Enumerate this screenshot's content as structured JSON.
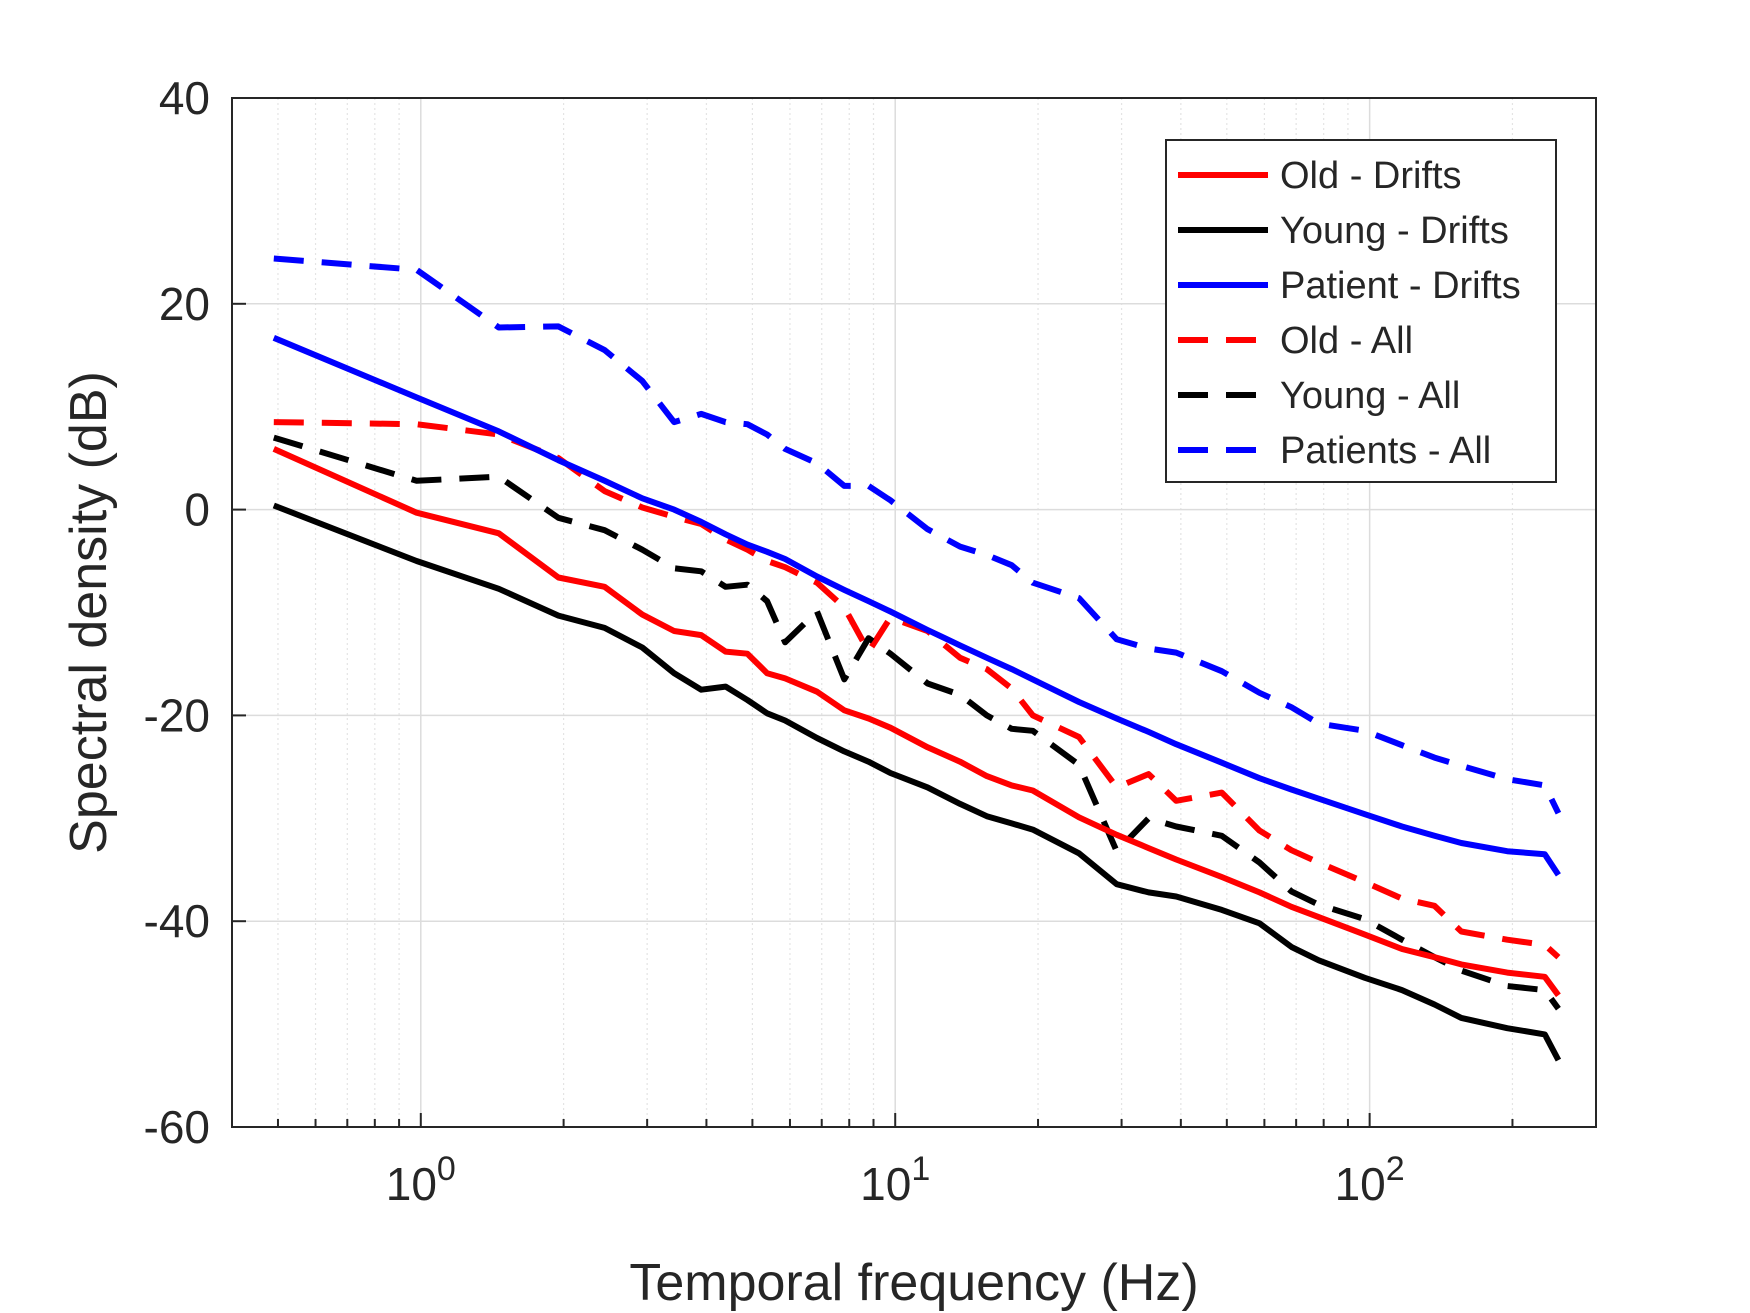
{
  "chart_data": {
    "type": "line",
    "title": "",
    "xlabel": "Temporal frequency (Hz)",
    "ylabel": "Spectral density (dB)",
    "xscale": "log",
    "xlim": [
      0.4,
      300
    ],
    "ylim": [
      -60,
      40
    ],
    "grid": true,
    "legend_position": "top-right",
    "x_ticks": [
      {
        "value": 1,
        "base": "10",
        "exp": "0"
      },
      {
        "value": 10,
        "base": "10",
        "exp": "1"
      },
      {
        "value": 100,
        "base": "10",
        "exp": "2"
      }
    ],
    "y_ticks": [
      {
        "value": 40,
        "label": "40"
      },
      {
        "value": 20,
        "label": "20"
      },
      {
        "value": 0,
        "label": "0"
      },
      {
        "value": -20,
        "label": "-20"
      },
      {
        "value": -40,
        "label": "-40"
      },
      {
        "value": -60,
        "label": "-60"
      }
    ],
    "series": [
      {
        "name": "Old - Drifts",
        "color": "#ff0000",
        "dash": "solid",
        "x": [
          0.49,
          0.98,
          1.46,
          1.95,
          2.44,
          2.93,
          3.42,
          3.9,
          4.39,
          4.88,
          5.37,
          5.86,
          6.84,
          7.81,
          8.79,
          9.77,
          11.7,
          13.7,
          15.6,
          17.6,
          19.5,
          24.4,
          29.3,
          34.2,
          39.1,
          48.8,
          58.6,
          68.4,
          78.1,
          97.7,
          117,
          137,
          156,
          195,
          234,
          250
        ],
        "y": [
          5.9,
          -0.3,
          -2.3,
          -6.6,
          -7.5,
          -10.2,
          -11.8,
          -12.2,
          -13.8,
          -14.0,
          -15.9,
          -16.4,
          -17.7,
          -19.5,
          -20.3,
          -21.2,
          -23.1,
          -24.5,
          -25.9,
          -26.8,
          -27.3,
          -29.9,
          -31.6,
          -32.9,
          -34.0,
          -35.7,
          -37.2,
          -38.6,
          -39.6,
          -41.3,
          -42.7,
          -43.5,
          -44.2,
          -45.0,
          -45.4,
          -47.2
        ]
      },
      {
        "name": "Young - Drifts",
        "color": "#000000",
        "dash": "solid",
        "x": [
          0.49,
          0.98,
          1.46,
          1.95,
          2.44,
          2.93,
          3.42,
          3.9,
          4.39,
          4.88,
          5.37,
          5.86,
          6.84,
          7.81,
          8.79,
          9.77,
          11.7,
          13.7,
          15.6,
          17.6,
          19.5,
          24.4,
          29.3,
          34.2,
          39.1,
          48.8,
          58.6,
          68.4,
          78.1,
          97.7,
          117,
          137,
          156,
          195,
          234,
          250
        ],
        "y": [
          0.4,
          -5.0,
          -7.7,
          -10.3,
          -11.5,
          -13.4,
          -15.9,
          -17.5,
          -17.2,
          -18.5,
          -19.8,
          -20.5,
          -22.2,
          -23.5,
          -24.5,
          -25.6,
          -27.0,
          -28.6,
          -29.8,
          -30.5,
          -31.1,
          -33.4,
          -36.4,
          -37.2,
          -37.6,
          -38.9,
          -40.2,
          -42.5,
          -43.8,
          -45.5,
          -46.7,
          -48.1,
          -49.4,
          -50.4,
          -51.0,
          -53.5
        ]
      },
      {
        "name": "Patient - Drifts",
        "color": "#0000ff",
        "dash": "solid",
        "x": [
          0.49,
          0.98,
          1.46,
          1.95,
          2.44,
          2.93,
          3.42,
          3.9,
          4.39,
          4.88,
          5.37,
          5.86,
          6.84,
          7.81,
          8.79,
          9.77,
          11.7,
          13.7,
          15.6,
          17.6,
          19.5,
          24.4,
          29.3,
          34.2,
          39.1,
          48.8,
          58.6,
          68.4,
          78.1,
          97.7,
          117,
          137,
          156,
          195,
          234,
          250
        ],
        "y": [
          16.7,
          10.9,
          7.6,
          4.8,
          2.8,
          1.1,
          0.0,
          -1.2,
          -2.4,
          -3.4,
          -4.1,
          -4.8,
          -6.5,
          -7.8,
          -8.9,
          -9.9,
          -11.7,
          -13.2,
          -14.4,
          -15.5,
          -16.5,
          -18.7,
          -20.3,
          -21.6,
          -22.8,
          -24.6,
          -26.1,
          -27.2,
          -28.1,
          -29.6,
          -30.8,
          -31.7,
          -32.4,
          -33.2,
          -33.5,
          -35.5
        ]
      },
      {
        "name": "Old - All",
        "color": "#ff0000",
        "dash": "dashed",
        "x": [
          0.49,
          0.98,
          1.46,
          1.95,
          2.44,
          2.93,
          3.42,
          3.9,
          4.39,
          4.88,
          5.37,
          5.86,
          6.84,
          7.81,
          8.79,
          9.77,
          11.7,
          13.7,
          15.6,
          17.6,
          19.5,
          24.4,
          29.3,
          34.2,
          39.1,
          48.8,
          58.6,
          68.4,
          78.1,
          97.7,
          117,
          137,
          156,
          195,
          234,
          250
        ],
        "y": [
          8.5,
          8.3,
          7.3,
          5.0,
          1.8,
          0.2,
          -0.7,
          -1.4,
          -2.9,
          -3.9,
          -5.0,
          -5.6,
          -7.1,
          -9.5,
          -13.8,
          -10.5,
          -11.8,
          -14.4,
          -15.5,
          -17.4,
          -20.0,
          -22.1,
          -27.0,
          -25.7,
          -28.3,
          -27.5,
          -31.2,
          -33.1,
          -34.3,
          -36.2,
          -37.8,
          -38.5,
          -41.0,
          -41.8,
          -42.3,
          -43.5
        ]
      },
      {
        "name": "Young - All",
        "color": "#000000",
        "dash": "dashed",
        "x": [
          0.49,
          0.98,
          1.46,
          1.95,
          2.44,
          2.93,
          3.42,
          3.9,
          4.39,
          4.88,
          5.37,
          5.86,
          6.84,
          7.81,
          8.79,
          9.77,
          11.7,
          13.7,
          15.6,
          17.6,
          19.5,
          24.4,
          29.3,
          34.2,
          39.1,
          48.8,
          58.6,
          68.4,
          78.1,
          97.7,
          117,
          137,
          156,
          195,
          234,
          250
        ],
        "y": [
          7.0,
          2.8,
          3.2,
          -0.8,
          -2.0,
          -3.9,
          -5.7,
          -6.0,
          -7.5,
          -7.3,
          -8.9,
          -12.9,
          -9.9,
          -16.5,
          -12.5,
          -14.0,
          -16.9,
          -18.0,
          -20.0,
          -21.3,
          -21.5,
          -24.8,
          -33.2,
          -30.0,
          -30.8,
          -31.7,
          -34.3,
          -37.1,
          -38.4,
          -39.8,
          -41.8,
          -43.5,
          -44.8,
          -46.3,
          -46.7,
          -48.5
        ]
      },
      {
        "name": "Patients - All",
        "color": "#0000ff",
        "dash": "dashed",
        "x": [
          0.49,
          0.98,
          1.46,
          1.95,
          2.44,
          2.93,
          3.42,
          3.9,
          4.39,
          4.88,
          5.37,
          5.86,
          6.84,
          7.81,
          8.79,
          9.77,
          11.7,
          13.7,
          15.6,
          17.6,
          19.5,
          24.4,
          29.3,
          34.2,
          39.1,
          48.8,
          58.6,
          68.4,
          78.1,
          97.7,
          117,
          137,
          156,
          195,
          234,
          250
        ],
        "y": [
          24.4,
          23.3,
          17.7,
          17.8,
          15.5,
          12.5,
          8.5,
          9.3,
          8.5,
          8.3,
          7.3,
          5.9,
          4.5,
          2.3,
          2.3,
          0.9,
          -1.9,
          -3.6,
          -4.4,
          -5.4,
          -7.1,
          -8.6,
          -12.6,
          -13.5,
          -13.9,
          -15.7,
          -17.8,
          -19.2,
          -20.8,
          -21.5,
          -22.9,
          -24.1,
          -24.9,
          -26.2,
          -26.8,
          -29.5
        ]
      }
    ]
  }
}
